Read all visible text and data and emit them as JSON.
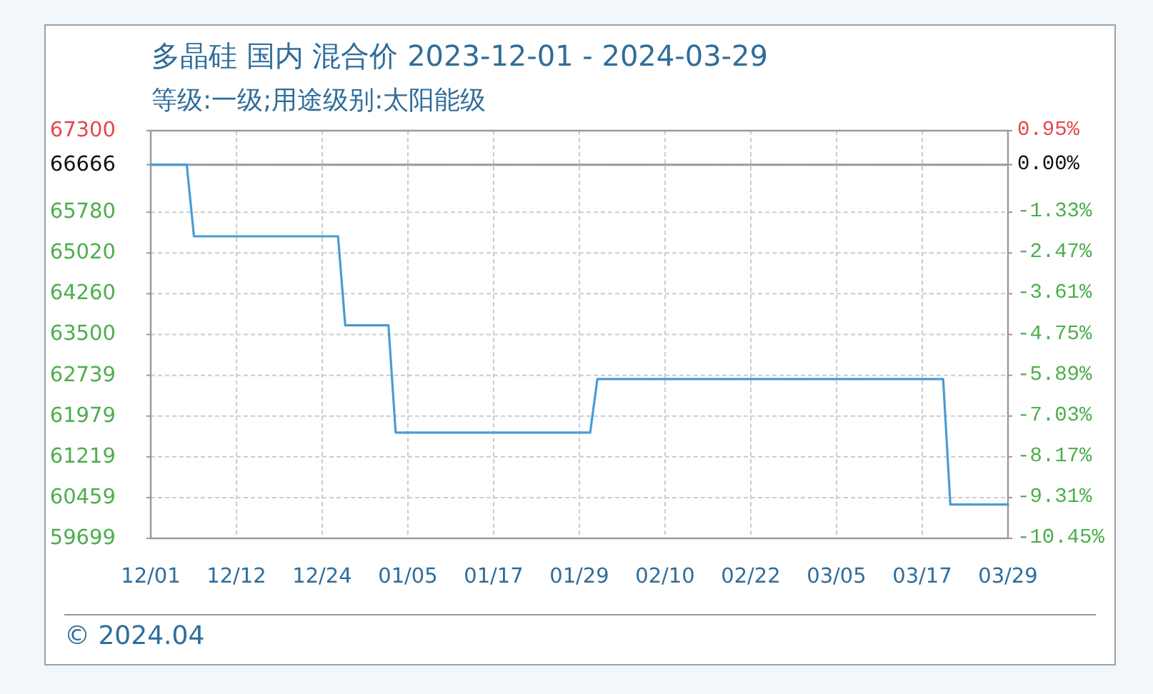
{
  "chart_data": {
    "type": "line",
    "title": "多晶硅 国内 混合价 2023-12-01 - 2024-03-29",
    "subtitle": "等级:一级;用途级别:太阳能级",
    "annotations": [
      "© 2024.04"
    ],
    "x": [
      "2023-12-01",
      "2023-12-06",
      "2023-12-07",
      "2023-12-27",
      "2023-12-28",
      "2024-01-03",
      "2024-01-04",
      "2024-01-31",
      "2024-02-01",
      "2024-03-20",
      "2024-03-21",
      "2024-03-29"
    ],
    "series": [
      {
        "color": "#4b9bd2",
        "values": [
          66666,
          66666,
          65330,
          65330,
          63670,
          63670,
          61670,
          61670,
          62670,
          62670,
          60330,
          60330
        ]
      }
    ],
    "xlim": [
      "2023-12-01",
      "2024-03-29"
    ],
    "xticks": [
      {
        "value": "2023-12-01",
        "label": "12/01"
      },
      {
        "value": "2023-12-12T21:36",
        "label": "12/12"
      },
      {
        "value": "2023-12-24T19:12",
        "label": "12/24"
      },
      {
        "value": "2024-01-05T16:48",
        "label": "01/05"
      },
      {
        "value": "2024-01-17T14:24",
        "label": "01/17"
      },
      {
        "value": "2024-01-29T12:00",
        "label": "01/29"
      },
      {
        "value": "2024-02-10T09:36",
        "label": "02/10"
      },
      {
        "value": "2024-02-22T07:12",
        "label": "02/22"
      },
      {
        "value": "2024-03-05T04:48",
        "label": "03/05"
      },
      {
        "value": "2024-03-17T02:24",
        "label": "03/17"
      },
      {
        "value": "2024-03-29",
        "label": "03/29"
      }
    ],
    "ylim": [
      59699,
      67300
    ],
    "yticks": [
      67300,
      66666,
      65780,
      65020,
      64260,
      63500,
      62739,
      61979,
      61219,
      60459,
      59699
    ],
    "y2lim": [
      -10.45,
      0.95
    ],
    "y2ticks": [
      {
        "value": 0.95,
        "label": "0.95%"
      },
      {
        "value": 0.0,
        "label": "0.00%"
      },
      {
        "value": -1.33,
        "label": "-1.33%"
      },
      {
        "value": -2.47,
        "label": "-2.47%"
      },
      {
        "value": -3.61,
        "label": "-3.61%"
      },
      {
        "value": -4.75,
        "label": "-4.75%"
      },
      {
        "value": -5.89,
        "label": "-5.89%"
      },
      {
        "value": -7.03,
        "label": "-7.03%"
      },
      {
        "value": -8.17,
        "label": "-8.17%"
      },
      {
        "value": -9.31,
        "label": "-9.31%"
      },
      {
        "value": -10.45,
        "label": "-10.45%"
      }
    ],
    "ref_lines": [
      {
        "axis": "y",
        "value": 66666,
        "color": "#999999"
      }
    ],
    "grid": true
  }
}
